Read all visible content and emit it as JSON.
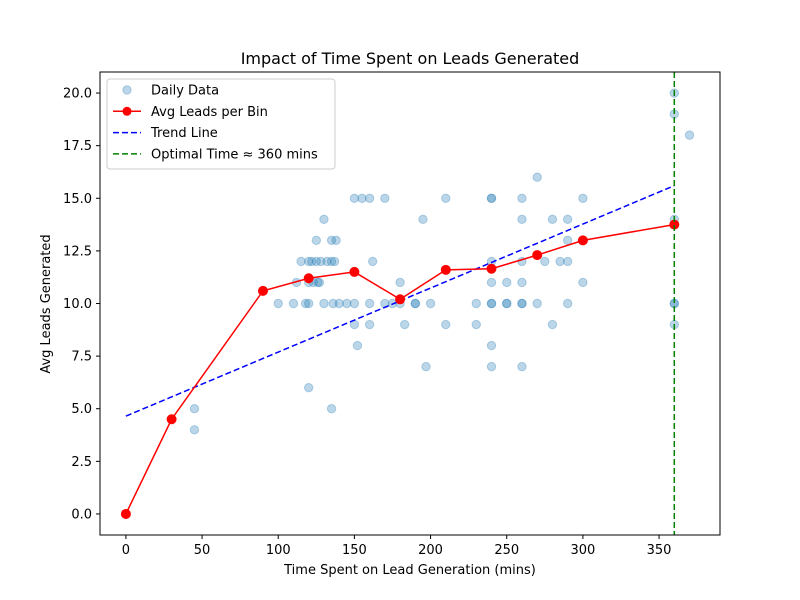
{
  "chart_data": {
    "type": "scatter",
    "title": "Impact of Time Spent on Leads Generated",
    "xlabel": "Time Spent on Lead Generation (mins)",
    "ylabel": "Avg Leads Generated",
    "xlim": [
      -17,
      390
    ],
    "ylim": [
      -1,
      21
    ],
    "xticks": [
      0,
      50,
      100,
      150,
      200,
      250,
      300,
      350
    ],
    "yticks": [
      0.0,
      2.5,
      5.0,
      7.5,
      10.0,
      12.5,
      15.0,
      17.5,
      20.0
    ],
    "xtick_labels": [
      "0",
      "50",
      "100",
      "150",
      "200",
      "250",
      "300",
      "350"
    ],
    "ytick_labels": [
      "0.0",
      "2.5",
      "5.0",
      "7.5",
      "10.0",
      "12.5",
      "15.0",
      "17.5",
      "20.0"
    ],
    "grid": false,
    "legend_position": "top-left",
    "series": [
      {
        "name": "Daily Data",
        "type": "scatter",
        "color": "#1f77b4",
        "alpha": 0.3,
        "points": [
          [
            45,
            5
          ],
          [
            45,
            4
          ],
          [
            100,
            10
          ],
          [
            110,
            10
          ],
          [
            112,
            11
          ],
          [
            115,
            12
          ],
          [
            118,
            10
          ],
          [
            120,
            12
          ],
          [
            120,
            11
          ],
          [
            120,
            6
          ],
          [
            120,
            10
          ],
          [
            122,
            12
          ],
          [
            123,
            11
          ],
          [
            125,
            12
          ],
          [
            125,
            13
          ],
          [
            126,
            11
          ],
          [
            127,
            11
          ],
          [
            128,
            12
          ],
          [
            130,
            14
          ],
          [
            130,
            10
          ],
          [
            132,
            12
          ],
          [
            135,
            12
          ],
          [
            135,
            13
          ],
          [
            135,
            5
          ],
          [
            136,
            10
          ],
          [
            137,
            12
          ],
          [
            138,
            13
          ],
          [
            140,
            10
          ],
          [
            145,
            10
          ],
          [
            150,
            15
          ],
          [
            150,
            10
          ],
          [
            150,
            9
          ],
          [
            152,
            8
          ],
          [
            155,
            15
          ],
          [
            160,
            15
          ],
          [
            160,
            10
          ],
          [
            160,
            9
          ],
          [
            162,
            12
          ],
          [
            170,
            15
          ],
          [
            170,
            10
          ],
          [
            175,
            10
          ],
          [
            180,
            11
          ],
          [
            180,
            10
          ],
          [
            183,
            9
          ],
          [
            190,
            10
          ],
          [
            190,
            10
          ],
          [
            195,
            14
          ],
          [
            197,
            7
          ],
          [
            200,
            10
          ],
          [
            210,
            15
          ],
          [
            210,
            9
          ],
          [
            230,
            10
          ],
          [
            230,
            9
          ],
          [
            240,
            15
          ],
          [
            240,
            15
          ],
          [
            240,
            12
          ],
          [
            240,
            11
          ],
          [
            240,
            10
          ],
          [
            240,
            10
          ],
          [
            240,
            8
          ],
          [
            240,
            7
          ],
          [
            250,
            11
          ],
          [
            250,
            10
          ],
          [
            250,
            10
          ],
          [
            260,
            15
          ],
          [
            260,
            14
          ],
          [
            260,
            12
          ],
          [
            260,
            11
          ],
          [
            260,
            10
          ],
          [
            260,
            10
          ],
          [
            260,
            7
          ],
          [
            270,
            16
          ],
          [
            270,
            10
          ],
          [
            275,
            12
          ],
          [
            280,
            14
          ],
          [
            280,
            9
          ],
          [
            285,
            12
          ],
          [
            290,
            14
          ],
          [
            290,
            13
          ],
          [
            290,
            12
          ],
          [
            290,
            10
          ],
          [
            300,
            15
          ],
          [
            300,
            11
          ],
          [
            360,
            20
          ],
          [
            360,
            19
          ],
          [
            360,
            14
          ],
          [
            360,
            10
          ],
          [
            360,
            10
          ],
          [
            360,
            9
          ],
          [
            370,
            18
          ]
        ]
      },
      {
        "name": "Avg Leads per Bin",
        "type": "line",
        "color": "#ff0000",
        "x": [
          0,
          30,
          90,
          120,
          150,
          180,
          210,
          240,
          270,
          300,
          360
        ],
        "y": [
          0.0,
          4.5,
          10.6,
          11.2,
          11.5,
          10.2,
          11.6,
          11.65,
          12.3,
          13.0,
          13.75
        ]
      },
      {
        "name": "Trend Line",
        "type": "line",
        "style": "dashed",
        "color": "#0000ff",
        "x": [
          0,
          360
        ],
        "y": [
          4.65,
          15.6
        ]
      },
      {
        "name": "Optimal Time ≈ 360 mins",
        "type": "vline",
        "style": "dashed",
        "color": "#008000",
        "x": 360
      }
    ]
  }
}
